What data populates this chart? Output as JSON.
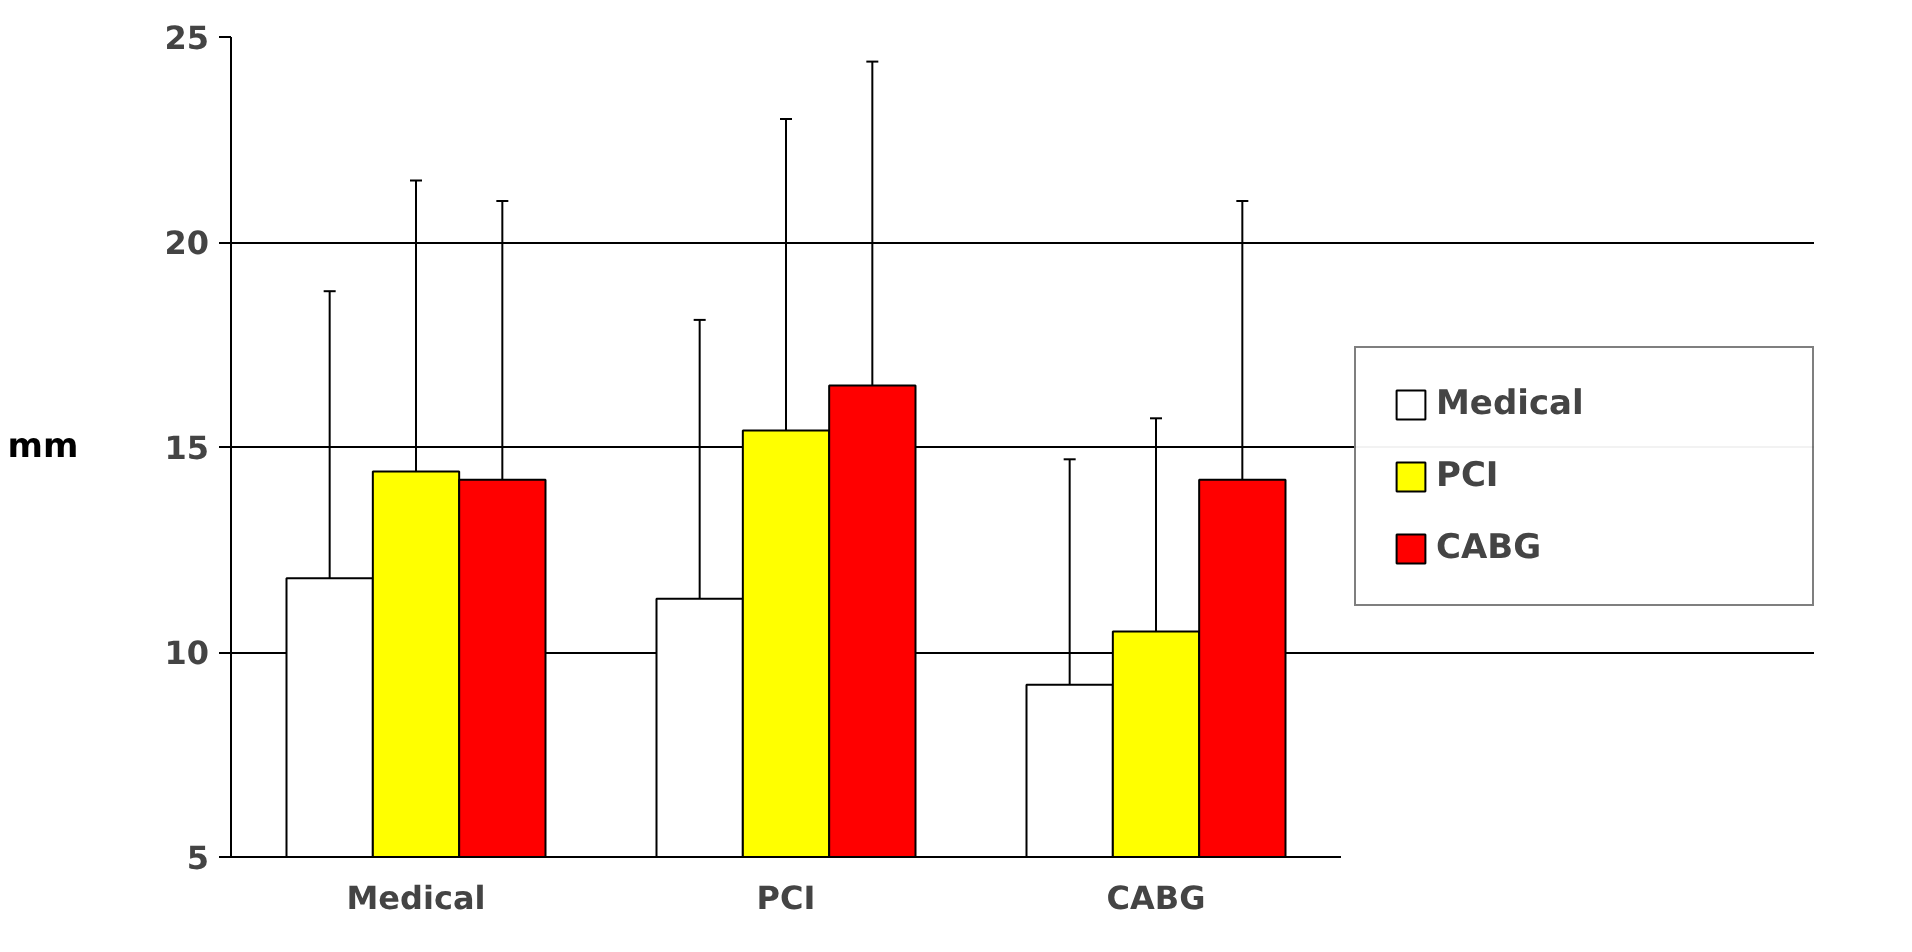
{
  "chart_data": {
    "type": "bar",
    "ylabel": "mm",
    "categories": [
      "Medical",
      "PCI",
      "CABG"
    ],
    "series": [
      {
        "name": "Medical",
        "color": "#ffffff",
        "values": [
          11.8,
          11.3,
          9.2
        ],
        "errors": [
          [
            11.8,
            18.8
          ],
          [
            11.3,
            18.1
          ],
          [
            9.2,
            14.7
          ]
        ]
      },
      {
        "name": "PCI",
        "color": "#ffff00",
        "values": [
          14.4,
          15.4,
          10.5
        ],
        "errors": [
          [
            14.4,
            21.5
          ],
          [
            15.4,
            23.0
          ],
          [
            10.5,
            15.7
          ]
        ]
      },
      {
        "name": "CABG",
        "color": "#ff0000",
        "values": [
          14.2,
          16.5,
          14.2
        ],
        "errors": [
          [
            14.2,
            21.0
          ],
          [
            16.5,
            24.4
          ],
          [
            14.2,
            21.0
          ]
        ]
      }
    ],
    "ylim": [
      5,
      25
    ],
    "yticks": [
      5,
      10,
      15,
      20,
      25
    ],
    "grid": "y",
    "legend": "right"
  }
}
